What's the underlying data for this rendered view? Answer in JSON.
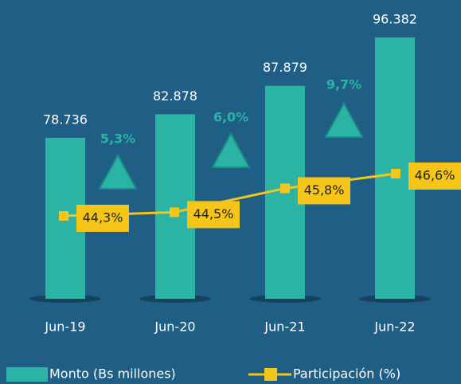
{
  "chart_data": {
    "type": "bar",
    "categories": [
      "Jun-19",
      "Jun-20",
      "Jun-21",
      "Jun-22"
    ],
    "series": [
      {
        "name": "Monto (Bs millones)",
        "color": "#2bb3a6",
        "values": [
          78736,
          82878,
          87879,
          96382
        ],
        "value_labels": [
          "78.736",
          "82.878",
          "87.879",
          "96.382"
        ]
      },
      {
        "name": "Participación (%)",
        "type": "line",
        "color": "#f5c518",
        "values": [
          44.3,
          44.5,
          45.8,
          46.6
        ],
        "value_labels": [
          "44,3%",
          "44,5%",
          "45,8%",
          "46,6%"
        ]
      }
    ],
    "annotations": [
      "5,3%",
      "6,0%",
      "9,7%"
    ]
  }
}
